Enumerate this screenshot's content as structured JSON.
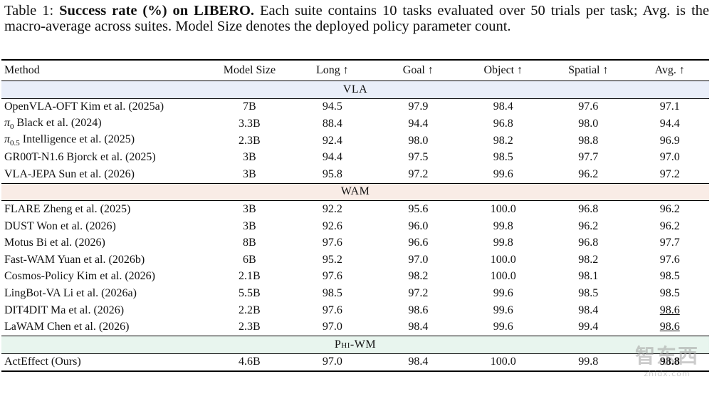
{
  "caption": {
    "label": "Table 1:",
    "title": "Success rate (%) on LIBERO.",
    "text": "Each suite contains 10 tasks evaluated over 50 trials per task; Avg. is the macro-average across suites. Model Size denotes the deployed policy parameter count."
  },
  "headers": [
    "Method",
    "Model Size",
    "Long ↑",
    "Goal ↑",
    "Object ↑",
    "Spatial ↑",
    "Avg. ↑"
  ],
  "groups": {
    "vla": "VLA",
    "wam": "WAM",
    "phi": "Phi-WM"
  },
  "vla_rows": [
    [
      "OpenVLA-OFT Kim et al. (2025a)",
      "7B",
      "94.5",
      "97.9",
      "98.4",
      "97.6",
      "97.1"
    ],
    [
      "π0 Black et al. (2024)",
      "3.3B",
      "88.4",
      "94.4",
      "96.8",
      "98.0",
      "94.4"
    ],
    [
      "π0.5 Intelligence et al. (2025)",
      "2.3B",
      "92.4",
      "98.0",
      "98.2",
      "98.8",
      "96.9"
    ],
    [
      "GR00T-N1.6 Bjorck et al. (2025)",
      "3B",
      "94.4",
      "97.5",
      "98.5",
      "97.7",
      "97.0"
    ],
    [
      "VLA-JEPA Sun et al. (2026)",
      "3B",
      "95.8",
      "97.2",
      "99.6",
      "96.2",
      "97.2"
    ]
  ],
  "wam_rows": [
    [
      "FLARE Zheng et al. (2025)",
      "3B",
      "92.2",
      "95.6",
      "100.0",
      "96.8",
      "96.2"
    ],
    [
      "DUST Won et al. (2026)",
      "3B",
      "92.6",
      "96.0",
      "99.8",
      "96.2",
      "96.2"
    ],
    [
      "Motus Bi et al. (2026)",
      "8B",
      "97.6",
      "96.6",
      "99.8",
      "96.8",
      "97.7"
    ],
    [
      "Fast-WAM Yuan et al. (2026b)",
      "6B",
      "95.2",
      "97.0",
      "100.0",
      "98.2",
      "97.6"
    ],
    [
      "Cosmos-Policy Kim et al. (2026)",
      "2.1B",
      "97.6",
      "98.2",
      "100.0",
      "98.1",
      "98.5"
    ],
    [
      "LingBot-VA Li et al. (2026a)",
      "5.5B",
      "98.5",
      "97.2",
      "99.6",
      "98.5",
      "98.5"
    ],
    [
      "DIT4DIT Ma et al. (2026)",
      "2.2B",
      "97.6",
      "98.6",
      "99.6",
      "98.4",
      "98.6"
    ],
    [
      "LaWAM Chen et al. (2026)",
      "2.3B",
      "97.0",
      "98.4",
      "99.6",
      "99.4",
      "98.6"
    ]
  ],
  "phi_rows": [
    [
      "ActEffect (Ours)",
      "4.6B",
      "97.0",
      "98.4",
      "100.0",
      "99.8",
      "98.8"
    ]
  ],
  "colors": {
    "vla_band": "#e9eef9",
    "wam_band": "#f9ece6",
    "phi_band": "#e8f5ee"
  },
  "watermark": {
    "big": "智东西",
    "small": "zhidx.com"
  }
}
